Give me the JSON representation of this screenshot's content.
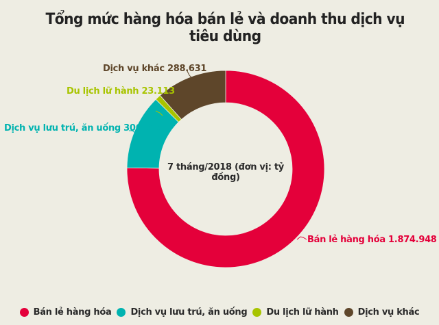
{
  "title": "Tổng mức hàng hóa bán lẻ và doanh thu dịch vụ tiêu dùng",
  "center_label": "7 tháng/2018 (đơn vị: tỷ đồng)",
  "colors": {
    "retail": "#e4003a",
    "accommodation": "#00b3b0",
    "travel": "#a8c400",
    "other": "#5e462a",
    "background": "#eeede3"
  },
  "labels": {
    "retail": "Bán lẻ hàng hóa 1.874.948",
    "accommodation": "Dịch vụ lưu trú, ăn uống 306.699",
    "travel": "Du lịch lữ hành 23.113",
    "other": "Dịch vụ khác 288.631"
  },
  "legend": [
    {
      "label": "Bán lẻ hàng hóa",
      "color": "#e4003a"
    },
    {
      "label": "Dịch vụ lưu trú, ăn uống",
      "color": "#00b3b0"
    },
    {
      "label": "Du lịch lữ hành",
      "color": "#a8c400"
    },
    {
      "label": "Dịch vụ khác",
      "color": "#5e462a"
    }
  ],
  "chart_data": {
    "type": "pie",
    "variant": "donut",
    "title": "Tổng mức hàng hóa bán lẻ và doanh thu dịch vụ tiêu dùng",
    "subtitle": "7 tháng/2018 (đơn vị: tỷ đồng)",
    "unit": "tỷ đồng",
    "categories": [
      "Bán lẻ hàng hóa",
      "Dịch vụ lưu trú, ăn uống",
      "Du lịch lữ hành",
      "Dịch vụ khác"
    ],
    "values": [
      1874948,
      306699,
      23113,
      288631
    ],
    "value_labels": [
      "1.874.948",
      "306.699",
      "23.113",
      "288.631"
    ],
    "colors": [
      "#e4003a",
      "#00b3b0",
      "#a8c400",
      "#5e462a"
    ],
    "start_angle_deg": 0,
    "direction": "clockwise",
    "legend_position": "bottom"
  }
}
